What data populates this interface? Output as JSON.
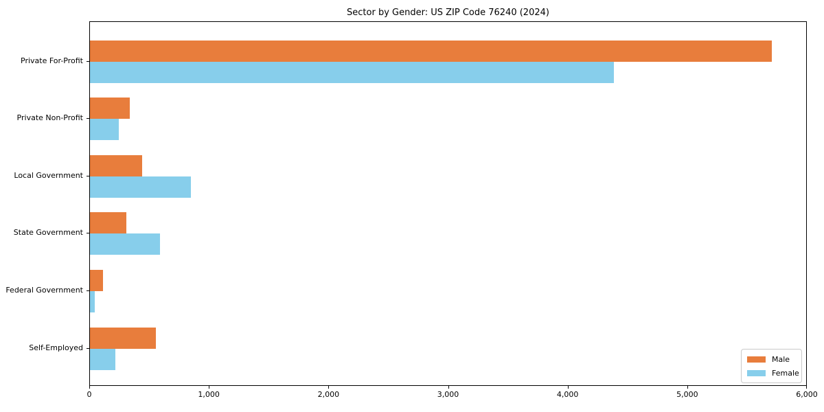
{
  "title": "Sector by Gender: US ZIP Code 76240 (2024)",
  "chart_data": {
    "type": "bar",
    "orientation": "horizontal",
    "title": "Sector by Gender: US ZIP Code 76240 (2024)",
    "categories": [
      "Private For-Profit",
      "Private Non-Profit",
      "Local Government",
      "State Government",
      "Federal Government",
      "Self-Employed"
    ],
    "series": [
      {
        "name": "Male",
        "color": "#e87d3c",
        "values": [
          5710,
          335,
          435,
          305,
          110,
          550
        ]
      },
      {
        "name": "Female",
        "color": "#87ceeb",
        "values": [
          4390,
          240,
          845,
          585,
          40,
          210
        ]
      }
    ],
    "xlabel": "",
    "ylabel": "",
    "xlim": [
      0,
      6000
    ],
    "xticks": [
      0,
      1000,
      2000,
      3000,
      4000,
      5000,
      6000
    ],
    "xtick_labels": [
      "0",
      "1,000",
      "2,000",
      "3,000",
      "4,000",
      "5,000",
      "6,000"
    ],
    "grid": false,
    "legend_position": "lower right",
    "background_color": "#ffffff",
    "spine_color": "#000000"
  }
}
